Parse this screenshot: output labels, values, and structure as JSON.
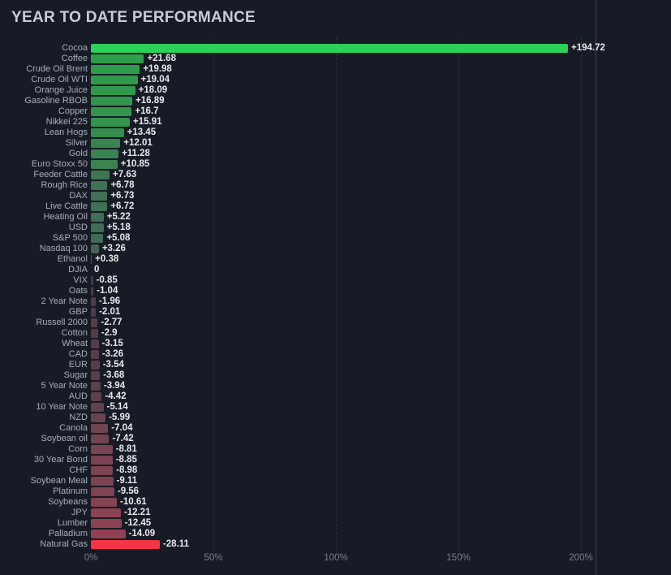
{
  "page": {
    "title": "YEAR TO DATE PERFORMANCE"
  },
  "colors": {
    "background": "#171b26",
    "title_text": "#c9ccd4",
    "category_text": "#a9adb8",
    "value_text": "#e8e9ec",
    "axis_text": "#7a7e89",
    "gridline": "#2a2f3b",
    "crosshair": "#4b5160",
    "positive_max": "#2bd158",
    "negative_max": "#f23645"
  },
  "chart_data": {
    "type": "bar",
    "orientation": "horizontal",
    "title": "YEAR TO DATE PERFORMANCE",
    "xlabel": "",
    "ylabel": "",
    "xlim_pct": [
      0,
      236
    ],
    "grid": "vertical-dashed",
    "legend": "none",
    "bar_note": "bars drawn rightward from 0 by absolute value; color encodes sign and magnitude",
    "categories": [
      "Cocoa",
      "Coffee",
      "Crude Oil Brent",
      "Crude Oil WTI",
      "Orange Juice",
      "Gasoline RBOB",
      "Copper",
      "Nikkei 225",
      "Lean Hogs",
      "Silver",
      "Gold",
      "Euro Stoxx 50",
      "Feeder Cattle",
      "Rough Rice",
      "DAX",
      "Live Cattle",
      "Heating Oil",
      "USD",
      "S&P 500",
      "Nasdaq 100",
      "Ethanol",
      "DJIA",
      "VIX",
      "Oats",
      "2 Year Note",
      "GBP",
      "Russell 2000",
      "Cotton",
      "Wheat",
      "CAD",
      "EUR",
      "Sugar",
      "5 Year Note",
      "AUD",
      "10 Year Note",
      "NZD",
      "Canola",
      "Soybean oil",
      "Corn",
      "30 Year Bond",
      "CHF",
      "Soybean Meal",
      "Platinum",
      "Soybeans",
      "JPY",
      "Lumber",
      "Palladium",
      "Natural Gas"
    ],
    "values": [
      194.72,
      21.68,
      19.98,
      19.04,
      18.09,
      16.89,
      16.7,
      15.91,
      13.45,
      12.01,
      11.28,
      10.85,
      7.63,
      6.78,
      6.73,
      6.72,
      5.22,
      5.18,
      5.08,
      3.26,
      0.38,
      0,
      -0.85,
      -1.04,
      -1.96,
      -2.01,
      -2.77,
      -2.9,
      -3.15,
      -3.26,
      -3.54,
      -3.68,
      -3.94,
      -4.42,
      -5.14,
      -5.99,
      -7.04,
      -7.42,
      -8.81,
      -8.85,
      -8.98,
      -9.11,
      -9.56,
      -10.61,
      -12.21,
      -12.45,
      -14.09,
      -28.11
    ],
    "value_labels": [
      "+194.72",
      "+21.68",
      "+19.98",
      "+19.04",
      "+18.09",
      "+16.89",
      "+16.7",
      "+15.91",
      "+13.45",
      "+12.01",
      "+11.28",
      "+10.85",
      "+7.63",
      "+6.78",
      "+6.73",
      "+6.72",
      "+5.22",
      "+5.18",
      "+5.08",
      "+3.26",
      "+0.38",
      "0",
      "-0.85",
      "-1.04",
      "-1.96",
      "-2.01",
      "-2.77",
      "-2.9",
      "-3.15",
      "-3.26",
      "-3.54",
      "-3.68",
      "-3.94",
      "-4.42",
      "-5.14",
      "-5.99",
      "-7.04",
      "-7.42",
      "-8.81",
      "-8.85",
      "-8.98",
      "-9.11",
      "-9.56",
      "-10.61",
      "-12.21",
      "-12.45",
      "-14.09",
      "-28.11"
    ],
    "bar_colors": [
      "#2bd158",
      "#2f9e4a",
      "#2f9c4a",
      "#309a4b",
      "#31984b",
      "#32954c",
      "#32954c",
      "#33924c",
      "#368b4e",
      "#38864f",
      "#398450",
      "#3a8350",
      "#3e7553",
      "#3f7254",
      "#3f7254",
      "#3f7254",
      "#416c55",
      "#416c55",
      "#416b55",
      "#446256",
      "#485658",
      "#4a4a52",
      "#4a3c45",
      "#4b3c46",
      "#513c47",
      "#513c47",
      "#563c48",
      "#563c48",
      "#583c49",
      "#593c49",
      "#5b3d4a",
      "#5c3d4a",
      "#5d3e4b",
      "#603f4c",
      "#64414e",
      "#6a424f",
      "#714350",
      "#734350",
      "#7b4351",
      "#7b4351",
      "#7c4351",
      "#7d4351",
      "#7f4351",
      "#854251",
      "#8c4252",
      "#8d4252",
      "#934152",
      "#f23645"
    ],
    "x_ticks": [
      {
        "label": "0%",
        "pct": 0
      },
      {
        "label": "50%",
        "pct": 50
      },
      {
        "label": "100%",
        "pct": 100
      },
      {
        "label": "150%",
        "pct": 150
      },
      {
        "label": "200%",
        "pct": 200
      }
    ]
  }
}
